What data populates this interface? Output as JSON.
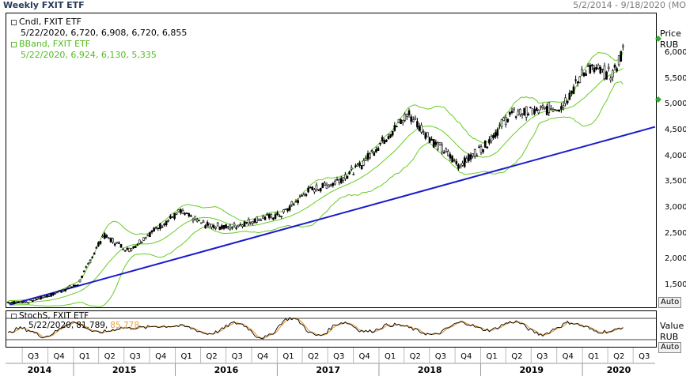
{
  "header": {
    "title": "Weekly FXIT ETF",
    "date_range": "5/2/2014 - 9/18/2020 (MO"
  },
  "main_legend": {
    "cndl_label": "Cndl, FXIT ETF",
    "cndl_values": "5/22/2020, 6,720, 6,908, 6,720, 6,855",
    "bband_label": "BBand, FXIT ETF",
    "bband_values": "5/22/2020, 6,924, 6,130, 5,335"
  },
  "price_axis": {
    "title": "Price",
    "unit": "RUB",
    "ticks": [
      "6,000",
      "5,500",
      "5,000",
      "4,500",
      "4,000",
      "3,500",
      "3,000",
      "2,500",
      "2,000",
      "1,500"
    ],
    "auto_label": "Auto"
  },
  "stoch_legend": {
    "label": "StochS, FXIT ETF",
    "date": "5/22/2020,",
    "k": "81.789,",
    "d": "85.778"
  },
  "stoch_axis": {
    "title": "Value",
    "unit": "RUB",
    "auto_label": "Auto"
  },
  "x_axis": {
    "quarters": [
      "Q3",
      "Q4",
      "Q1",
      "Q2",
      "Q3",
      "Q4",
      "Q1",
      "Q2",
      "Q3",
      "Q4",
      "Q1",
      "Q2",
      "Q3",
      "Q4",
      "Q1",
      "Q2",
      "Q3",
      "Q4",
      "Q1",
      "Q2",
      "Q3",
      "Q4",
      "Q1",
      "Q2",
      "Q3"
    ],
    "years": [
      "2014",
      "2015",
      "2016",
      "2017",
      "2018",
      "2019",
      "2020"
    ]
  },
  "colors": {
    "candle": "#000000",
    "bband": "#66cc22",
    "trendline": "#1a1acc",
    "stoch_k": "#000000",
    "stoch_d": "#e8a040",
    "marker": "#33aa33"
  },
  "chart_data": {
    "type": "line",
    "x": [
      "2014-07",
      "2014-10",
      "2015-01",
      "2015-04",
      "2015-07",
      "2015-10",
      "2016-01",
      "2016-04",
      "2016-07",
      "2016-10",
      "2017-01",
      "2017-04",
      "2017-07",
      "2017-10",
      "2018-01",
      "2018-04",
      "2018-07",
      "2018-10",
      "2019-01",
      "2019-04",
      "2019-07",
      "2019-10",
      "2020-01",
      "2020-04",
      "2020-07",
      "2020-09"
    ],
    "series": [
      {
        "name": "Cndl, FXIT ETF",
        "values": [
          1200,
          1350,
          1550,
          2500,
          2200,
          2600,
          2950,
          2700,
          2650,
          2800,
          2900,
          3350,
          3500,
          3800,
          4350,
          4850,
          4300,
          3850,
          4250,
          4850,
          4900,
          5000,
          5750,
          5600,
          6750,
          6900
        ]
      },
      {
        "name": "StochS, FXIT ETF",
        "values": [
          10,
          70,
          30,
          80,
          20,
          90,
          60,
          30,
          70,
          20,
          85,
          40,
          80,
          30,
          85,
          50,
          20,
          70,
          90,
          40,
          80,
          30,
          90,
          20,
          85,
          82
        ]
      }
    ],
    "trendline": {
      "start": [
        "2014-05",
        1150
      ],
      "end": [
        "2020-09",
        4600
      ]
    },
    "ylim": [
      1100,
      6800
    ],
    "y_ticks": [
      1500,
      2000,
      2500,
      3000,
      3500,
      4000,
      4500,
      5000,
      5500,
      6000
    ]
  }
}
